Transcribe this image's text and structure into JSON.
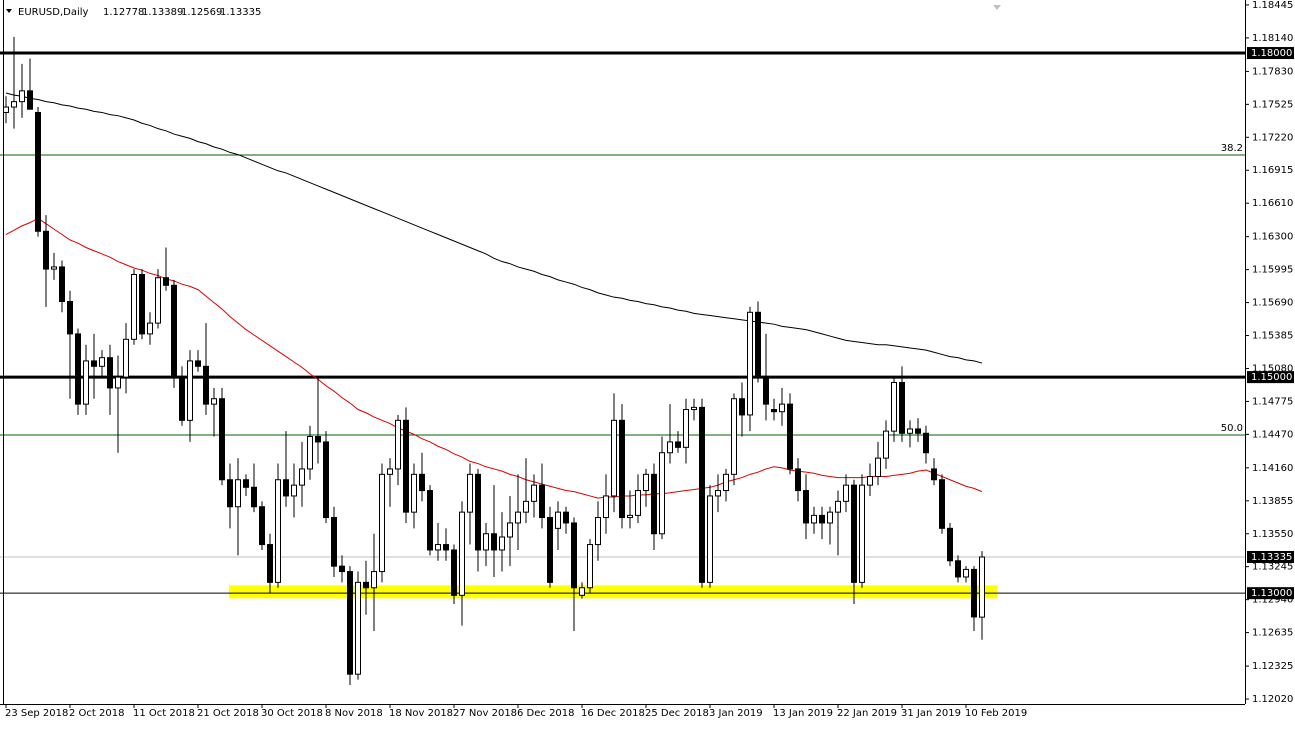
{
  "chart_data": {
    "type": "candlestick",
    "title": "EURUSD,Daily",
    "ylim": [
      1.11974,
      1.18491
    ],
    "yticks": [
      1.18445,
      {
        "value": 1.1814,
        "label": "1.18140"
      },
      {
        "value": 1.1783,
        "label": "1.17830"
      },
      1.17525,
      {
        "value": 1.1722,
        "label": "1.17220"
      },
      1.16915,
      {
        "value": 1.1661,
        "label": "1.16610"
      },
      {
        "value": 1.163,
        "label": "1.16300"
      },
      1.15995,
      {
        "value": 1.1569,
        "label": "1.15690"
      },
      1.15385,
      {
        "value": 1.1508,
        "label": "1.15080"
      },
      1.14775,
      {
        "value": 1.1447,
        "label": "1.14470"
      },
      {
        "value": 1.1416,
        "label": "1.14160"
      },
      1.13855,
      {
        "value": 1.1355,
        "label": "1.13550"
      },
      1.13245,
      {
        "value": 1.1294,
        "label": "1.12940"
      },
      1.12635,
      1.12325,
      {
        "value": 1.1202,
        "label": "1.12020"
      }
    ],
    "grid": false,
    "bull_color": "#ffffff",
    "bear_color": "#000000",
    "categories": [
      "23 Sep 2018",
      null,
      null,
      null,
      null,
      null,
      null,
      null,
      "2 Oct 2018",
      null,
      null,
      null,
      null,
      null,
      null,
      null,
      "11 Oct 2018",
      null,
      null,
      null,
      null,
      null,
      null,
      null,
      "21 Oct 2018",
      null,
      null,
      null,
      null,
      null,
      null,
      null,
      "30 Oct 2018",
      null,
      null,
      null,
      null,
      null,
      null,
      null,
      "8 Nov 2018",
      null,
      null,
      null,
      null,
      null,
      null,
      null,
      "18 Nov 2018",
      null,
      null,
      null,
      null,
      null,
      null,
      null,
      "27 Nov 2018",
      null,
      null,
      null,
      null,
      null,
      null,
      null,
      "6 Dec 2018",
      null,
      null,
      null,
      null,
      null,
      null,
      null,
      "16 Dec 2018",
      null,
      null,
      null,
      null,
      null,
      null,
      null,
      "25 Dec 2018",
      null,
      null,
      null,
      null,
      null,
      null,
      null,
      "3 Jan 2019",
      null,
      null,
      null,
      null,
      null,
      null,
      null,
      "13 Jan 2019",
      null,
      null,
      null,
      null,
      null,
      null,
      null,
      "22 Jan 2019",
      null,
      null,
      null,
      null,
      null,
      null,
      null,
      "31 Jan 2019",
      null,
      null,
      null,
      null,
      null,
      null,
      null,
      "10 Feb 2019",
      null,
      null
    ],
    "candles": [
      [
        1.1745,
        1.176,
        1.1735,
        1.175
      ],
      [
        1.175,
        1.1815,
        1.173,
        1.1755
      ],
      [
        1.1755,
        1.179,
        1.174,
        1.1765
      ],
      [
        1.1765,
        1.1795,
        1.175,
        1.1748
      ],
      [
        1.1745,
        1.175,
        1.163,
        1.1635
      ],
      [
        1.1635,
        1.165,
        1.1565,
        1.16
      ],
      [
        1.16,
        1.1615,
        1.159,
        1.1602
      ],
      [
        1.1602,
        1.1608,
        1.156,
        1.157
      ],
      [
        1.157,
        1.158,
        1.148,
        1.154
      ],
      [
        1.154,
        1.1545,
        1.1465,
        1.1475
      ],
      [
        1.1475,
        1.153,
        1.1465,
        1.1515
      ],
      [
        1.1515,
        1.154,
        1.148,
        1.151
      ],
      [
        1.151,
        1.1525,
        1.15,
        1.1518
      ],
      [
        1.1518,
        1.153,
        1.1465,
        1.149
      ],
      [
        1.149,
        1.152,
        1.143,
        1.15
      ],
      [
        1.15,
        1.155,
        1.1485,
        1.1535
      ],
      [
        1.1535,
        1.16,
        1.153,
        1.1595
      ],
      [
        1.1595,
        1.16,
        1.1535,
        1.154
      ],
      [
        1.154,
        1.156,
        1.153,
        1.155
      ],
      [
        1.155,
        1.16,
        1.1545,
        1.1592
      ],
      [
        1.1592,
        1.162,
        1.158,
        1.1585
      ],
      [
        1.1585,
        1.159,
        1.149,
        1.15
      ],
      [
        1.15,
        1.151,
        1.1455,
        1.146
      ],
      [
        1.146,
        1.1525,
        1.144,
        1.1515
      ],
      [
        1.1515,
        1.1525,
        1.1505,
        1.151
      ],
      [
        1.151,
        1.155,
        1.1465,
        1.1475
      ],
      [
        1.1475,
        1.149,
        1.1445,
        1.148
      ],
      [
        1.148,
        1.149,
        1.14,
        1.1405
      ],
      [
        1.1405,
        1.142,
        1.136,
        1.138
      ],
      [
        1.138,
        1.1425,
        1.1335,
        1.1405
      ],
      [
        1.1405,
        1.141,
        1.139,
        1.1398
      ],
      [
        1.1398,
        1.142,
        1.1375,
        1.138
      ],
      [
        1.138,
        1.1385,
        1.134,
        1.1345
      ],
      [
        1.1345,
        1.1355,
        1.13,
        1.131
      ],
      [
        1.131,
        1.142,
        1.1305,
        1.1405
      ],
      [
        1.1405,
        1.145,
        1.138,
        1.139
      ],
      [
        1.139,
        1.142,
        1.137,
        1.14
      ],
      [
        1.14,
        1.144,
        1.138,
        1.1415
      ],
      [
        1.1415,
        1.1455,
        1.1405,
        1.1445
      ],
      [
        1.1445,
        1.15,
        1.142,
        1.144
      ],
      [
        1.144,
        1.145,
        1.1365,
        1.137
      ],
      [
        1.137,
        1.138,
        1.1315,
        1.1325
      ],
      [
        1.1325,
        1.1335,
        1.131,
        1.132
      ],
      [
        1.132,
        1.1325,
        1.1215,
        1.1225
      ],
      [
        1.1225,
        1.132,
        1.122,
        1.131
      ],
      [
        1.131,
        1.133,
        1.128,
        1.1305
      ],
      [
        1.1305,
        1.1355,
        1.1265,
        1.132
      ],
      [
        1.132,
        1.142,
        1.131,
        1.141
      ],
      [
        1.141,
        1.1425,
        1.138,
        1.1415
      ],
      [
        1.1415,
        1.1465,
        1.14,
        1.146
      ],
      [
        1.146,
        1.1472,
        1.1365,
        1.1375
      ],
      [
        1.1375,
        1.142,
        1.136,
        1.141
      ],
      [
        1.141,
        1.143,
        1.1385,
        1.1395
      ],
      [
        1.1395,
        1.14,
        1.1335,
        1.134
      ],
      [
        1.134,
        1.1365,
        1.133,
        1.1345
      ],
      [
        1.1345,
        1.136,
        1.133,
        1.134
      ],
      [
        1.134,
        1.1345,
        1.129,
        1.1298
      ],
      [
        1.1298,
        1.1385,
        1.127,
        1.1375
      ],
      [
        1.1375,
        1.142,
        1.1345,
        1.141
      ],
      [
        1.141,
        1.1415,
        1.132,
        1.134
      ],
      [
        1.134,
        1.1365,
        1.1325,
        1.1355
      ],
      [
        1.1355,
        1.14,
        1.1315,
        1.134
      ],
      [
        1.134,
        1.1375,
        1.132,
        1.1352
      ],
      [
        1.1352,
        1.139,
        1.1325,
        1.1365
      ],
      [
        1.1365,
        1.141,
        1.134,
        1.1375
      ],
      [
        1.1375,
        1.1425,
        1.1365,
        1.1385
      ],
      [
        1.1385,
        1.141,
        1.137,
        1.14
      ],
      [
        1.14,
        1.142,
        1.136,
        1.137
      ],
      [
        1.137,
        1.138,
        1.1305,
        1.131
      ],
      [
        1.136,
        1.1385,
        1.134,
        1.1375
      ],
      [
        1.1375,
        1.138,
        1.1355,
        1.1365
      ],
      [
        1.1365,
        1.137,
        1.1265,
        1.1305
      ],
      [
        1.1298,
        1.131,
        1.1295,
        1.1305
      ],
      [
        1.1305,
        1.135,
        1.13,
        1.1345
      ],
      [
        1.1345,
        1.1385,
        1.133,
        1.137
      ],
      [
        1.137,
        1.141,
        1.1355,
        1.139
      ],
      [
        1.139,
        1.1485,
        1.1375,
        1.146
      ],
      [
        1.146,
        1.1475,
        1.136,
        1.137
      ],
      [
        1.137,
        1.1395,
        1.136,
        1.1372
      ],
      [
        1.1372,
        1.141,
        1.1365,
        1.1395
      ],
      [
        1.1395,
        1.1415,
        1.138,
        1.141
      ],
      [
        1.141,
        1.142,
        1.134,
        1.1355
      ],
      [
        1.1355,
        1.1445,
        1.135,
        1.143
      ],
      [
        1.143,
        1.1475,
        1.142,
        1.144
      ],
      [
        1.144,
        1.145,
        1.143,
        1.1435
      ],
      [
        1.1435,
        1.148,
        1.142,
        1.147
      ],
      [
        1.147,
        1.148,
        1.146,
        1.1472
      ],
      [
        1.1472,
        1.148,
        1.1305,
        1.131
      ],
      [
        1.131,
        1.14,
        1.1305,
        1.139
      ],
      [
        1.139,
        1.141,
        1.1375,
        1.1395
      ],
      [
        1.1395,
        1.1415,
        1.1385,
        1.141
      ],
      [
        1.141,
        1.1485,
        1.14,
        1.148
      ],
      [
        1.148,
        1.1495,
        1.1445,
        1.1465
      ],
      [
        1.1465,
        1.1565,
        1.145,
        1.156
      ],
      [
        1.156,
        1.157,
        1.1495,
        1.15
      ],
      [
        1.15,
        1.154,
        1.146,
        1.1475
      ],
      [
        1.147,
        1.148,
        1.146,
        1.1468
      ],
      [
        1.1468,
        1.149,
        1.1455,
        1.1475
      ],
      [
        1.1475,
        1.1485,
        1.141,
        1.1415
      ],
      [
        1.1415,
        1.1425,
        1.1385,
        1.1395
      ],
      [
        1.1395,
        1.141,
        1.135,
        1.1365
      ],
      [
        1.1365,
        1.138,
        1.1355,
        1.1372
      ],
      [
        1.1372,
        1.138,
        1.135,
        1.1365
      ],
      [
        1.1365,
        1.138,
        1.1345,
        1.1375
      ],
      [
        1.1375,
        1.1395,
        1.1335,
        1.1385
      ],
      [
        1.1385,
        1.141,
        1.1375,
        1.14
      ],
      [
        1.14,
        1.1405,
        1.129,
        1.131
      ],
      [
        1.131,
        1.141,
        1.1305,
        1.14
      ],
      [
        1.14,
        1.142,
        1.139,
        1.1408
      ],
      [
        1.1408,
        1.144,
        1.14,
        1.1425
      ],
      [
        1.1425,
        1.146,
        1.1415,
        1.145
      ],
      [
        1.145,
        1.15,
        1.144,
        1.1495
      ],
      [
        1.1495,
        1.151,
        1.144,
        1.1448
      ],
      [
        1.1448,
        1.146,
        1.1435,
        1.1452
      ],
      [
        1.1452,
        1.1462,
        1.144,
        1.1448
      ],
      [
        1.1448,
        1.1455,
        1.142,
        1.143
      ],
      [
        1.1415,
        1.1425,
        1.14,
        1.1405
      ],
      [
        1.1405,
        1.141,
        1.1355,
        1.136
      ],
      [
        1.136,
        1.1365,
        1.1325,
        1.133
      ],
      [
        1.133,
        1.1335,
        1.131,
        1.1315
      ],
      [
        1.1315,
        1.1325,
        1.131,
        1.1322
      ],
      [
        1.1322,
        1.1325,
        1.1265,
        1.1278
      ],
      [
        1.12778,
        1.13389,
        1.12569,
        1.13335
      ]
    ],
    "series": [
      {
        "color": "#000000",
        "values": [
          1.1763,
          1.1761,
          1.176,
          1.1758,
          1.1757,
          1.1755,
          1.1754,
          1.1752,
          1.1751,
          1.1749,
          1.1748,
          1.1746,
          1.1745,
          1.1743,
          1.1742,
          1.174,
          1.1738,
          1.1735,
          1.1733,
          1.173,
          1.1728,
          1.1725,
          1.1723,
          1.1721,
          1.1718,
          1.1716,
          1.1713,
          1.1711,
          1.1708,
          1.1706,
          1.1703,
          1.17,
          1.1697,
          1.1694,
          1.1691,
          1.1689,
          1.1686,
          1.1683,
          1.168,
          1.1677,
          1.1674,
          1.1671,
          1.1668,
          1.1665,
          1.1662,
          1.1659,
          1.1656,
          1.1653,
          1.165,
          1.1647,
          1.1644,
          1.1641,
          1.1638,
          1.1635,
          1.1632,
          1.1629,
          1.1626,
          1.1623,
          1.162,
          1.1617,
          1.1614,
          1.161,
          1.1607,
          1.1605,
          1.1602,
          1.16,
          1.1598,
          1.1595,
          1.1593,
          1.159,
          1.1588,
          1.1586,
          1.1583,
          1.1581,
          1.1578,
          1.1576,
          1.1574,
          1.1573,
          1.1571,
          1.157,
          1.1568,
          1.1567,
          1.1565,
          1.1564,
          1.1562,
          1.1561,
          1.1559,
          1.1558,
          1.1557,
          1.1556,
          1.1555,
          1.1554,
          1.1553,
          1.1552,
          1.1551,
          1.155,
          1.1549,
          1.1547,
          1.1546,
          1.1545,
          1.1544,
          1.1542,
          1.154,
          1.1538,
          1.1536,
          1.1534,
          1.1533,
          1.1532,
          1.1531,
          1.153,
          1.153,
          1.1529,
          1.1528,
          1.1527,
          1.1526,
          1.1525,
          1.1523,
          1.1521,
          1.1519,
          1.1518,
          1.1516,
          1.1515,
          1.1513
        ]
      },
      {
        "color": "#e00000",
        "values": [
          1.1632,
          1.1636,
          1.164,
          1.1643,
          1.1647,
          1.1642,
          1.1637,
          1.1632,
          1.1627,
          1.1624,
          1.162,
          1.1617,
          1.1614,
          1.1611,
          1.1607,
          1.1604,
          1.1601,
          1.1599,
          1.1596,
          1.1594,
          1.1591,
          1.1589,
          1.1586,
          1.1584,
          1.1581,
          1.1575,
          1.1569,
          1.1563,
          1.1556,
          1.155,
          1.1544,
          1.1539,
          1.1534,
          1.1529,
          1.1524,
          1.1519,
          1.1514,
          1.1509,
          1.1503,
          1.1498,
          1.1492,
          1.1487,
          1.1481,
          1.1476,
          1.147,
          1.1467,
          1.1463,
          1.146,
          1.1457,
          1.1453,
          1.145,
          1.1447,
          1.1443,
          1.144,
          1.1436,
          1.1433,
          1.1429,
          1.1426,
          1.1422,
          1.142,
          1.1417,
          1.1415,
          1.1413,
          1.141,
          1.1408,
          1.1405,
          1.1403,
          1.1401,
          1.1399,
          1.1397,
          1.1395,
          1.1394,
          1.1392,
          1.139,
          1.1388,
          1.1389,
          1.1389,
          1.139,
          1.139,
          1.1391,
          1.1391,
          1.1392,
          1.1392,
          1.1393,
          1.1394,
          1.1395,
          1.1396,
          1.1397,
          1.1398,
          1.14,
          1.1403,
          1.1405,
          1.1407,
          1.141,
          1.1412,
          1.1415,
          1.1417,
          1.1416,
          1.1414,
          1.1413,
          1.1412,
          1.1411,
          1.1409,
          1.1408,
          1.1407,
          1.1407,
          1.1407,
          1.1407,
          1.1408,
          1.1408,
          1.1408,
          1.1409,
          1.141,
          1.1411,
          1.1413,
          1.1414,
          1.1411,
          1.1408,
          1.1405,
          1.1402,
          1.1399,
          1.1397,
          1.1394
        ]
      }
    ],
    "levels": [
      {
        "value": 1.18,
        "label": "1.18000",
        "color": "#000000",
        "width": 3
      },
      {
        "value": 1.15,
        "label": "1.15000",
        "color": "#000000",
        "width": 3
      },
      {
        "value": 1.13,
        "label": "1.13000",
        "color": "#000000",
        "width": 1
      }
    ],
    "fib_levels": [
      {
        "value": 1.17056,
        "label": "38.2",
        "color": "#006400"
      },
      {
        "value": 1.14464,
        "label": "50.0",
        "color": "#006400"
      }
    ],
    "current_price_color": "#c0c0c0",
    "zone": {
      "from": 1.12952,
      "to": 1.13072,
      "color": "#ffff00"
    }
  }
}
